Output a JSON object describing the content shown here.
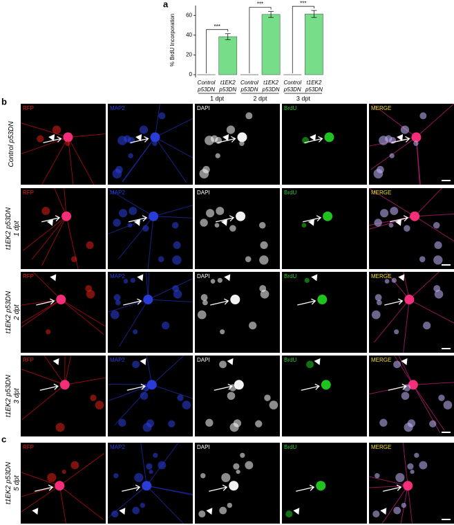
{
  "panel_labels": [
    "a",
    "b",
    "c"
  ],
  "chart_data": {
    "type": "bar",
    "ylabel": "% BrdU Incorporation",
    "categories": [
      "Control p53DN",
      "t1EK2 p53DN",
      "Control p53DN",
      "t1EK2 p53DN",
      "Control p53DN",
      "t1EK2 p53DN"
    ],
    "groups": [
      "1 dpt",
      "2 dpt",
      "3 dpt"
    ],
    "values": [
      0,
      38.5,
      0,
      61,
      0,
      61.5
    ],
    "errors": [
      null,
      3,
      null,
      3,
      null,
      3.5
    ],
    "annotations": [
      "***",
      "***",
      "***"
    ],
    "color": "#77dd88",
    "ylim": [
      0,
      70
    ],
    "yticks": [
      0,
      20,
      40,
      60
    ]
  },
  "channels": [
    {
      "name": "RFP",
      "color": "#e0201a"
    },
    {
      "name": "MAP2",
      "color": "#2b3fe0"
    },
    {
      "name": "DAPI",
      "color": "#ffffff"
    },
    {
      "name": "BrdU",
      "color": "#22cc22"
    },
    {
      "name": "MERGE",
      "color": "#f0e020"
    }
  ],
  "rows": [
    {
      "label": "Control p53DN"
    },
    {
      "label": "t1EK2 p53DN",
      "sub": "1 dpt"
    },
    {
      "label": "t1EK2 p53DN",
      "sub": "2 dpt"
    },
    {
      "label": "t1EK2 p53DN",
      "sub": "3 dpt"
    },
    {
      "label": "t1EK2 p53DN",
      "sub": "5 dpt"
    }
  ]
}
